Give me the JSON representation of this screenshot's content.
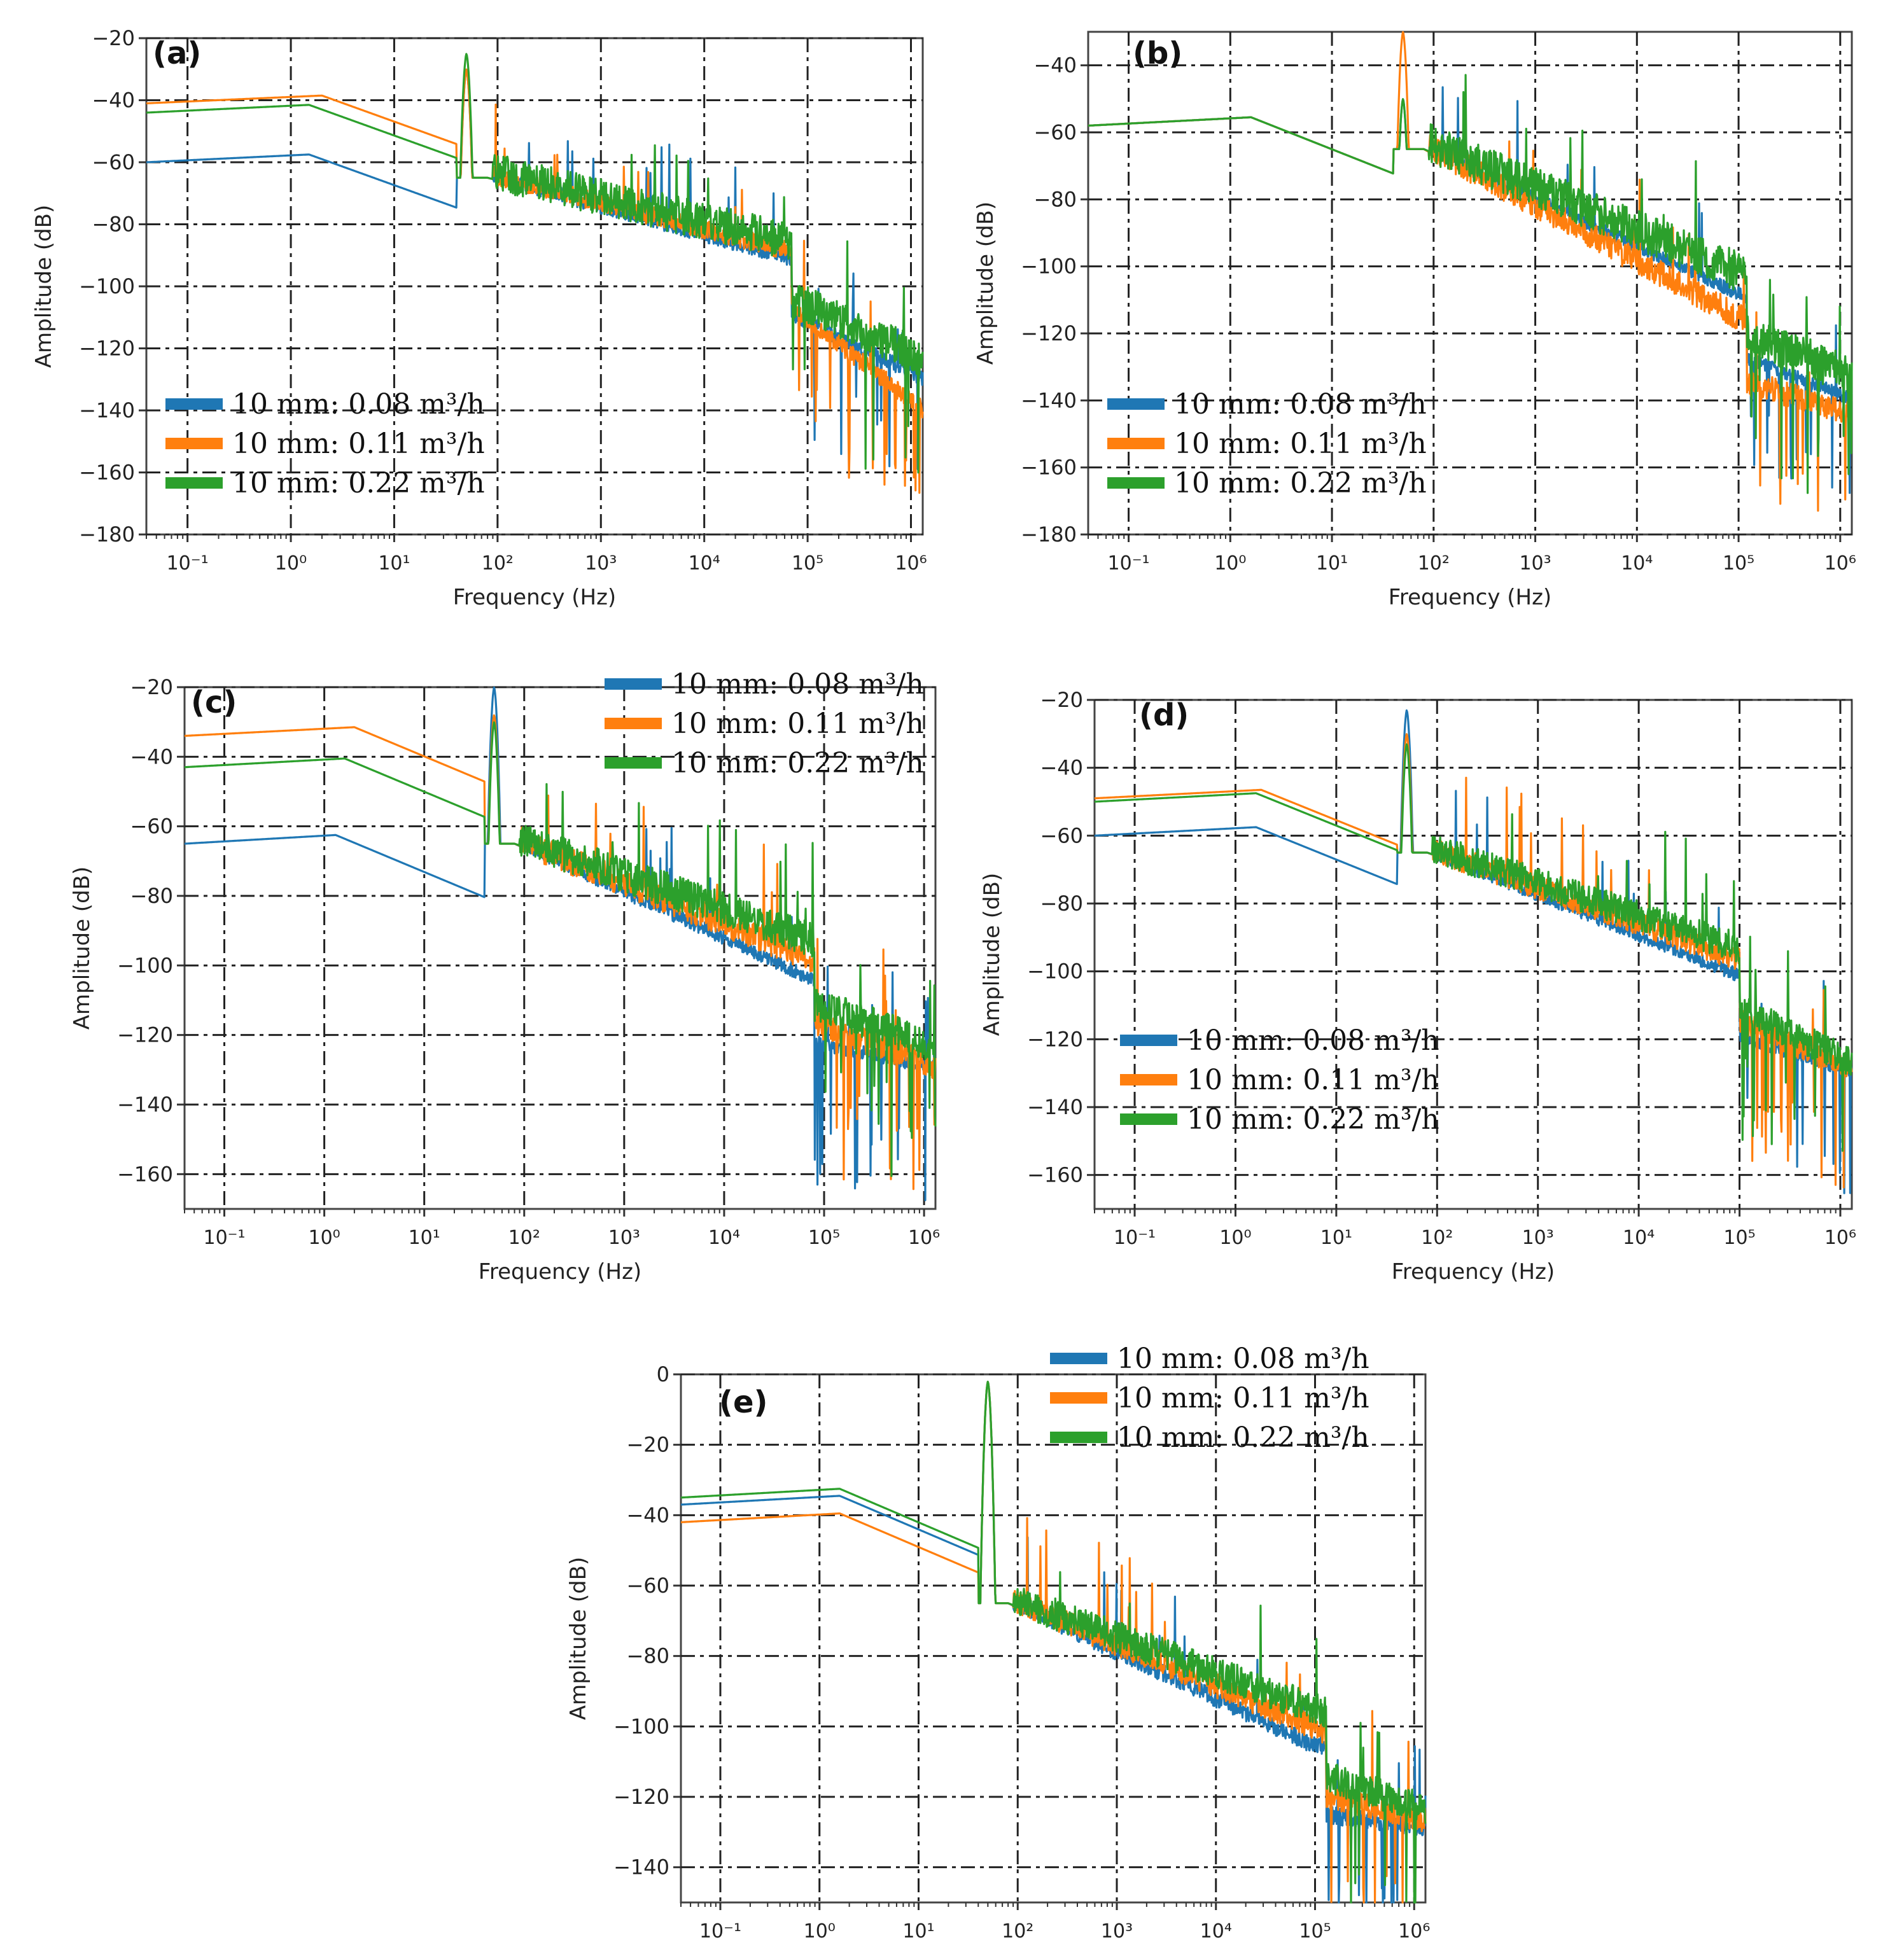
{
  "chart_data": [
    {
      "type": "line",
      "id": "a",
      "panel_label": "(a)",
      "xlabel": "Frequency (Hz)",
      "ylabel": "Amplitude (dB)",
      "xscale": "log",
      "xlim": [
        0.04,
        1300000
      ],
      "ylim": [
        -180,
        -20
      ],
      "yticks": [
        -20,
        -40,
        -60,
        -80,
        -100,
        -120,
        -140,
        -160,
        -180
      ],
      "xticks": [
        "10⁻¹",
        "10⁰",
        "10¹",
        "10²",
        "10³",
        "10⁴",
        "10⁵",
        "10⁶"
      ],
      "grid": true,
      "legend_position": "lower-left",
      "series": [
        {
          "name": "10 mm: 0.08 m³/h",
          "color": "#1f77b4",
          "low": -60,
          "knee": 1.5,
          "peak50": -30,
          "noise": 5,
          "tail": -92,
          "jump": 70000,
          "end": -130
        },
        {
          "name": "10 mm: 0.11 m³/h",
          "color": "#ff7f0e",
          "low": -41,
          "knee": 2,
          "peak50": -30,
          "noise": 6,
          "tail": -90,
          "jump": 70000,
          "end": -140
        },
        {
          "name": "10 mm: 0.22 m³/h",
          "color": "#2ca02c",
          "low": -44,
          "knee": 1.5,
          "peak50": -25,
          "noise": 12,
          "tail": -88,
          "jump": 70000,
          "end": -125
        }
      ]
    },
    {
      "type": "line",
      "id": "b",
      "panel_label": "(b)",
      "xlabel": "Frequency (Hz)",
      "ylabel": "Amplitude (dB)",
      "xscale": "log",
      "xlim": [
        0.04,
        1300000
      ],
      "ylim": [
        -180,
        -30
      ],
      "yticks": [
        -40,
        -60,
        -80,
        -100,
        -120,
        -140,
        -160,
        -180
      ],
      "xticks": [
        "10⁻¹",
        "10⁰",
        "10¹",
        "10²",
        "10³",
        "10⁴",
        "10⁵",
        "10⁶"
      ],
      "grid": true,
      "legend_position": "lower-left",
      "series": [
        {
          "name": "10 mm: 0.08 m³/h",
          "color": "#1f77b4",
          "low": -58,
          "knee": 1.6,
          "peak50": -50,
          "noise": 4,
          "tail": -110,
          "jump": 120000,
          "end": -140
        },
        {
          "name": "10 mm: 0.11 m³/h",
          "color": "#ff7f0e",
          "low": -58,
          "knee": 1.6,
          "peak50": -30,
          "noise": 8,
          "tail": -118,
          "jump": 120000,
          "end": -145
        },
        {
          "name": "10 mm: 0.22 m³/h",
          "color": "#2ca02c",
          "low": -58,
          "knee": 1.6,
          "peak50": -50,
          "noise": 12,
          "tail": -105,
          "jump": 120000,
          "end": -135
        }
      ]
    },
    {
      "type": "line",
      "id": "c",
      "panel_label": "(c)",
      "xlabel": "Frequency (Hz)",
      "ylabel": "Amplitude (dB)",
      "xscale": "log",
      "xlim": [
        0.04,
        1300000
      ],
      "ylim": [
        -170,
        -20
      ],
      "yticks": [
        -20,
        -40,
        -60,
        -80,
        -100,
        -120,
        -140,
        -160
      ],
      "xticks": [
        "10⁻¹",
        "10⁰",
        "10¹",
        "10²",
        "10³",
        "10⁴",
        "10⁵",
        "10⁶"
      ],
      "grid": true,
      "legend_position": "top-right",
      "series": [
        {
          "name": "10 mm: 0.08 m³/h",
          "color": "#1f77b4",
          "low": -65,
          "knee": 1.3,
          "peak50": -20,
          "noise": 4,
          "tail": -105,
          "jump": 80000,
          "end": -130
        },
        {
          "name": "10 mm: 0.11 m³/h",
          "color": "#ff7f0e",
          "low": -34,
          "knee": 2,
          "peak50": -28,
          "noise": 8,
          "tail": -100,
          "jump": 80000,
          "end": -130
        },
        {
          "name": "10 mm: 0.22 m³/h",
          "color": "#2ca02c",
          "low": -43,
          "knee": 1.6,
          "peak50": -30,
          "noise": 10,
          "tail": -95,
          "jump": 80000,
          "end": -125
        }
      ]
    },
    {
      "type": "line",
      "id": "d",
      "panel_label": "(d)",
      "xlabel": "Frequency (Hz)",
      "ylabel": "Amplitude (dB)",
      "xscale": "log",
      "xlim": [
        0.04,
        1300000
      ],
      "ylim": [
        -170,
        -20
      ],
      "yticks": [
        -20,
        -40,
        -60,
        -80,
        -100,
        -120,
        -140,
        -160
      ],
      "xticks": [
        "10⁻¹",
        "10⁰",
        "10¹",
        "10²",
        "10³",
        "10⁴",
        "10⁵",
        "10⁶"
      ],
      "grid": true,
      "legend_position": "lower-left",
      "series": [
        {
          "name": "10 mm: 0.08 m³/h",
          "color": "#1f77b4",
          "low": -60,
          "knee": 1.6,
          "peak50": -23,
          "noise": 4,
          "tail": -102,
          "jump": 100000,
          "end": -130
        },
        {
          "name": "10 mm: 0.11 m³/h",
          "color": "#ff7f0e",
          "low": -49,
          "knee": 1.8,
          "peak50": -30,
          "noise": 7,
          "tail": -98,
          "jump": 100000,
          "end": -130
        },
        {
          "name": "10 mm: 0.22 m³/h",
          "color": "#2ca02c",
          "low": -50,
          "knee": 1.6,
          "peak50": -33,
          "noise": 9,
          "tail": -95,
          "jump": 100000,
          "end": -128
        }
      ]
    },
    {
      "type": "line",
      "id": "e",
      "panel_label": "(e)",
      "xlabel": "Frequency (Hz)",
      "ylabel": "Amplitude (dB)",
      "xscale": "log",
      "xlim": [
        0.04,
        1300000
      ],
      "ylim": [
        -150,
        0
      ],
      "yticks": [
        0,
        -20,
        -40,
        -60,
        -80,
        -100,
        -120,
        -140
      ],
      "xticks": [
        "10⁻¹",
        "10⁰",
        "10¹",
        "10²",
        "10³",
        "10⁴",
        "10⁵",
        "10⁶"
      ],
      "grid": true,
      "legend_position": "top-right",
      "series": [
        {
          "name": "10 mm: 0.08 m³/h",
          "color": "#1f77b4",
          "low": -37,
          "knee": 1.6,
          "peak50": -2,
          "noise": 5,
          "tail": -108,
          "jump": 130000,
          "end": -130
        },
        {
          "name": "10 mm: 0.11 m³/h",
          "color": "#ff7f0e",
          "low": -42,
          "knee": 1.6,
          "peak50": -2,
          "noise": 7,
          "tail": -103,
          "jump": 130000,
          "end": -128
        },
        {
          "name": "10 mm: 0.22 m³/h",
          "color": "#2ca02c",
          "low": -35,
          "knee": 1.6,
          "peak50": -2,
          "noise": 9,
          "tail": -98,
          "jump": 130000,
          "end": -125
        }
      ]
    }
  ]
}
